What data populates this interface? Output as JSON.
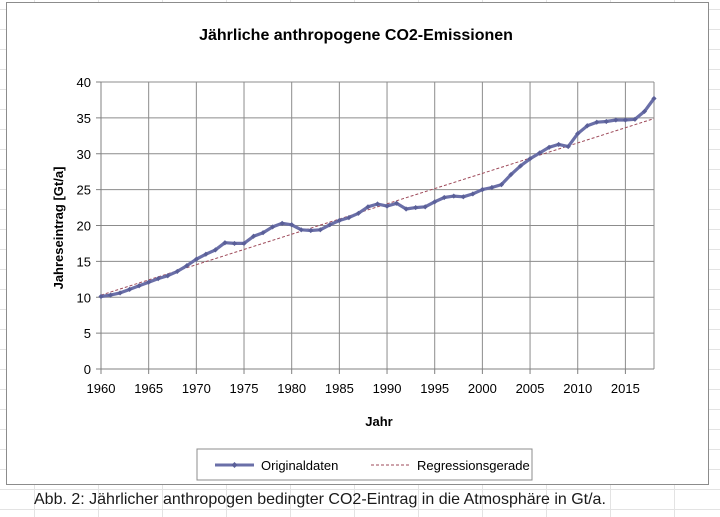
{
  "caption": "Abb. 2: Jährlicher anthropogen bedingter CO2-Eintrag in die Atmosphäre in Gt/a.",
  "colors": {
    "series": "#6a6fa8",
    "marker": "#5a5f98",
    "regression": "#9e4a5a",
    "grid": "#8c8c8c",
    "axis": "#808080",
    "text": "#000000"
  },
  "chart_data": {
    "type": "line",
    "title": "Jährliche anthropogene CO2-Emissionen",
    "xlabel": "Jahr",
    "ylabel": "Jahreseintrag [Gt/a]",
    "xlim": [
      1960,
      2018
    ],
    "ylim": [
      0,
      40
    ],
    "x_ticks": [
      "1960",
      "1965",
      "1970",
      "1975",
      "1980",
      "1985",
      "1990",
      "1995",
      "2000",
      "2005",
      "2010",
      "2015"
    ],
    "y_ticks": [
      "0",
      "5",
      "10",
      "15",
      "20",
      "25",
      "30",
      "35",
      "40"
    ],
    "grid": true,
    "legend_position": "bottom",
    "x": [
      1960,
      1961,
      1962,
      1963,
      1964,
      1965,
      1966,
      1967,
      1968,
      1969,
      1970,
      1971,
      1972,
      1973,
      1974,
      1975,
      1976,
      1977,
      1978,
      1979,
      1980,
      1981,
      1982,
      1983,
      1984,
      1985,
      1986,
      1987,
      1988,
      1989,
      1990,
      1991,
      1992,
      1993,
      1994,
      1995,
      1996,
      1997,
      1998,
      1999,
      2000,
      2001,
      2002,
      2003,
      2004,
      2005,
      2006,
      2007,
      2008,
      2009,
      2010,
      2011,
      2012,
      2013,
      2014,
      2015,
      2016,
      2017,
      2018
    ],
    "series": [
      {
        "name": "Originaldaten",
        "style": "line-with-markers",
        "values": [
          10.1,
          10.3,
          10.6,
          11.1,
          11.6,
          12.1,
          12.6,
          13.0,
          13.6,
          14.4,
          15.3,
          16.0,
          16.6,
          17.6,
          17.5,
          17.5,
          18.5,
          19.0,
          19.8,
          20.3,
          20.1,
          19.4,
          19.3,
          19.4,
          20.1,
          20.7,
          21.1,
          21.7,
          22.6,
          23.0,
          22.7,
          23.1,
          22.3,
          22.5,
          22.6,
          23.3,
          23.9,
          24.1,
          24.0,
          24.4,
          25.0,
          25.3,
          25.7,
          27.1,
          28.3,
          29.3,
          30.1,
          30.9,
          31.3,
          31.0,
          32.8,
          33.9,
          34.4,
          34.5,
          34.7,
          34.7,
          34.8,
          35.9,
          37.7
        ]
      },
      {
        "name": "Regressionsgerade",
        "style": "dashed-line",
        "values": [
          10.3,
          34.9
        ],
        "x": [
          1960,
          2018
        ]
      }
    ]
  }
}
